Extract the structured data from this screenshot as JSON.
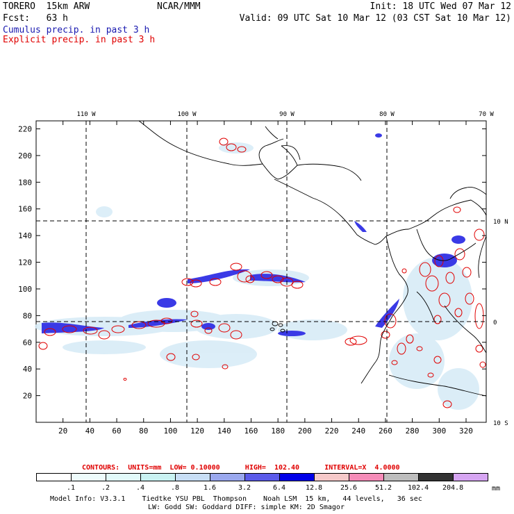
{
  "header": {
    "model": "TORERO  15km ARW",
    "center": "NCAR/MMM",
    "init": "Init: 18 UTC Wed 07 Mar 12",
    "fcst": "Fcst:   63 h",
    "valid": "Valid: 09 UTC Sat 10 Mar 12 (03 CST Sat 10 Mar 12)",
    "field1": "Cumulus precip. in past 3 h",
    "field2": "Explicit precip. in past 3 h",
    "field1_color": "#1a1ab0",
    "field2_color": "#e00000"
  },
  "map": {
    "lon_labels": [
      "110 W",
      "100 W",
      "90 W",
      "80 W",
      "70 W"
    ],
    "lat_labels": [
      "10 N",
      "0",
      "10 S"
    ],
    "x_ticks": [
      20,
      40,
      60,
      80,
      100,
      120,
      140,
      160,
      180,
      200,
      220,
      240,
      260,
      280,
      300,
      320
    ],
    "y_ticks": [
      20,
      40,
      60,
      80,
      100,
      120,
      140,
      160,
      180,
      200,
      220
    ],
    "x_range": [
      0,
      335
    ],
    "y_range": [
      0,
      226
    ]
  },
  "contour_info": {
    "label": "CONTOURS:  UNITS=mm  LOW= 0.10000      HIGH=  102.40      INTERVAL=X  4.0000"
  },
  "colorbar": {
    "values": [
      ".1",
      ".2",
      ".4",
      ".8",
      "1.6",
      "3.2",
      "6.4",
      "12.8",
      "25.6",
      "51.2",
      "102.4",
      "204.8"
    ],
    "unit": "mm",
    "colors": [
      "#ffffff",
      "#eefcfc",
      "#e2fafa",
      "#c9f2f2",
      "#c8def5",
      "#9aa8ee",
      "#5b5bea",
      "#0000e8",
      "#f6c9c9",
      "#f58cb8",
      "#bdbdbd",
      "#333333",
      "#d6a5f2"
    ]
  },
  "footer": {
    "line1": "Model Info: V3.3.1    Tiedtke YSU PBL  Thompson    Noah LSM  15 km,   44 levels,   36 sec",
    "line2": "LW: Godd SW: Goddard DIFF: simple KM: 2D Smagor"
  }
}
